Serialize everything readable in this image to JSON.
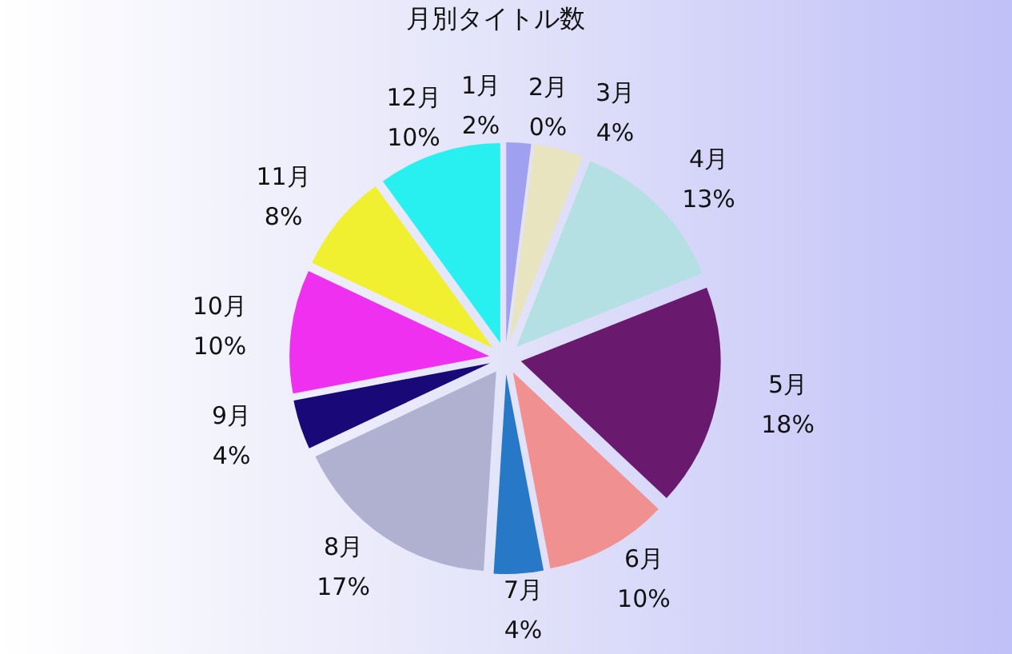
{
  "chart_data": {
    "type": "pie",
    "title": "月別タイトル数",
    "categories": [
      "1月",
      "2月",
      "3月",
      "4月",
      "5月",
      "6月",
      "7月",
      "8月",
      "9月",
      "10月",
      "11月",
      "12月"
    ],
    "values": [
      2,
      0,
      4,
      13,
      18,
      10,
      4,
      17,
      4,
      10,
      8,
      10
    ],
    "colors": [
      "#a0a0f0",
      "#6a1a40",
      "#e8e4c0",
      "#b4e0e4",
      "#6a1a6e",
      "#f09090",
      "#2878c8",
      "#b0b0d0",
      "#180878",
      "#f030f0",
      "#f0f030",
      "#28f0f0"
    ],
    "value_labels": [
      "2%",
      "0%",
      "4%",
      "13%",
      "18%",
      "10%",
      "4%",
      "17%",
      "4%",
      "10%",
      "8%",
      "10%"
    ]
  }
}
